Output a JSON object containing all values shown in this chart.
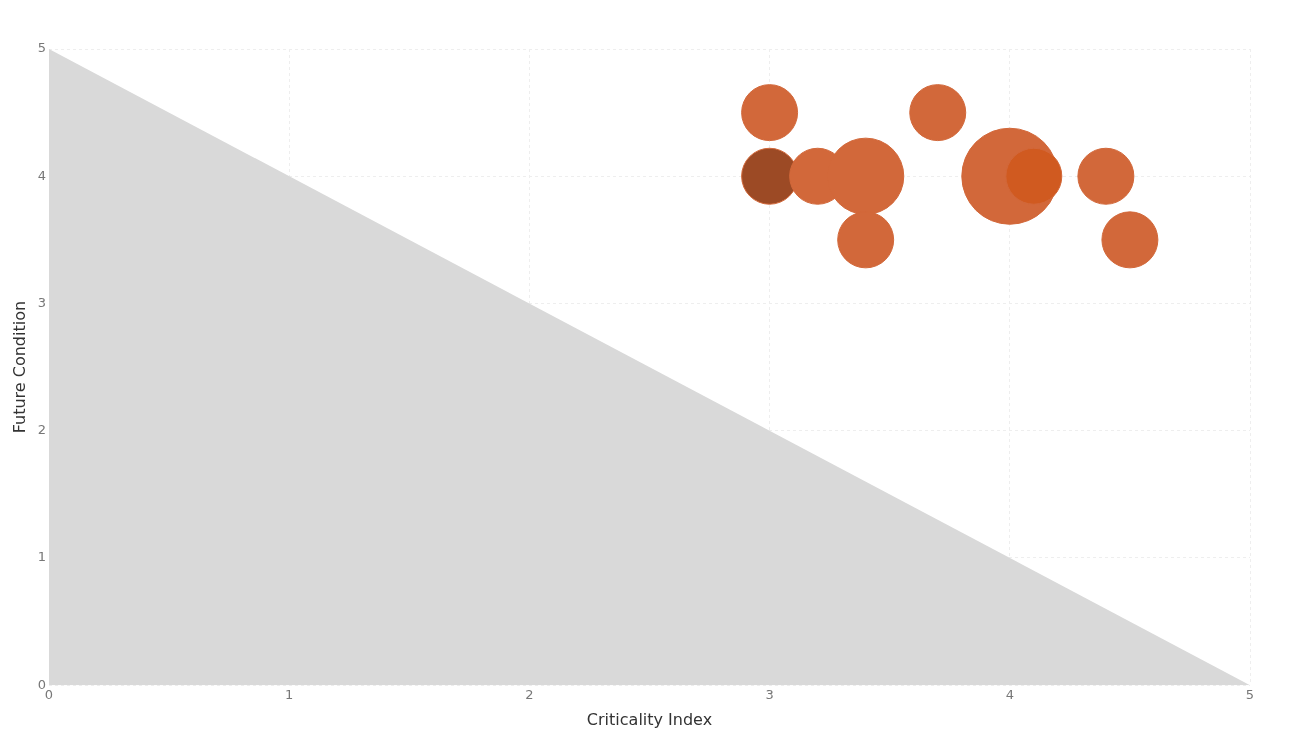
{
  "chart_data": {
    "type": "bubble",
    "xlabel": "Criticality Index",
    "ylabel": "Future Condition",
    "xlim": [
      0,
      5
    ],
    "ylim": [
      0,
      5
    ],
    "xticks": [
      0,
      1,
      2,
      3,
      4,
      5
    ],
    "yticks": [
      0,
      1,
      2,
      3,
      4,
      5
    ],
    "grid": true,
    "legend": false,
    "series": [
      {
        "type": "area",
        "color": "#d9d9d9",
        "x": [
          0,
          5
        ],
        "values": [
          5,
          0
        ]
      },
      {
        "color": "#d2683a",
        "x": [
          3.0,
          3.0,
          3.2,
          3.4,
          3.4,
          3.7,
          4.0,
          4.1,
          4.4,
          4.5
        ],
        "values": [
          4.5,
          4.0,
          4.0,
          4.0,
          3.5,
          4.5,
          4.0,
          4.0,
          4.0,
          3.5
        ],
        "sizes": [
          0.34,
          0.34,
          0.34,
          0.63,
          0.34,
          0.34,
          1,
          0.34,
          0.34,
          0.34
        ],
        "colors": [
          "#d2683a",
          "#9c4a25",
          "#d2683a",
          "#d2683a",
          "#d2683a",
          "#d2683a",
          "#d2683a",
          "#d05a20",
          "#d2683a",
          "#d2683a"
        ]
      }
    ]
  }
}
